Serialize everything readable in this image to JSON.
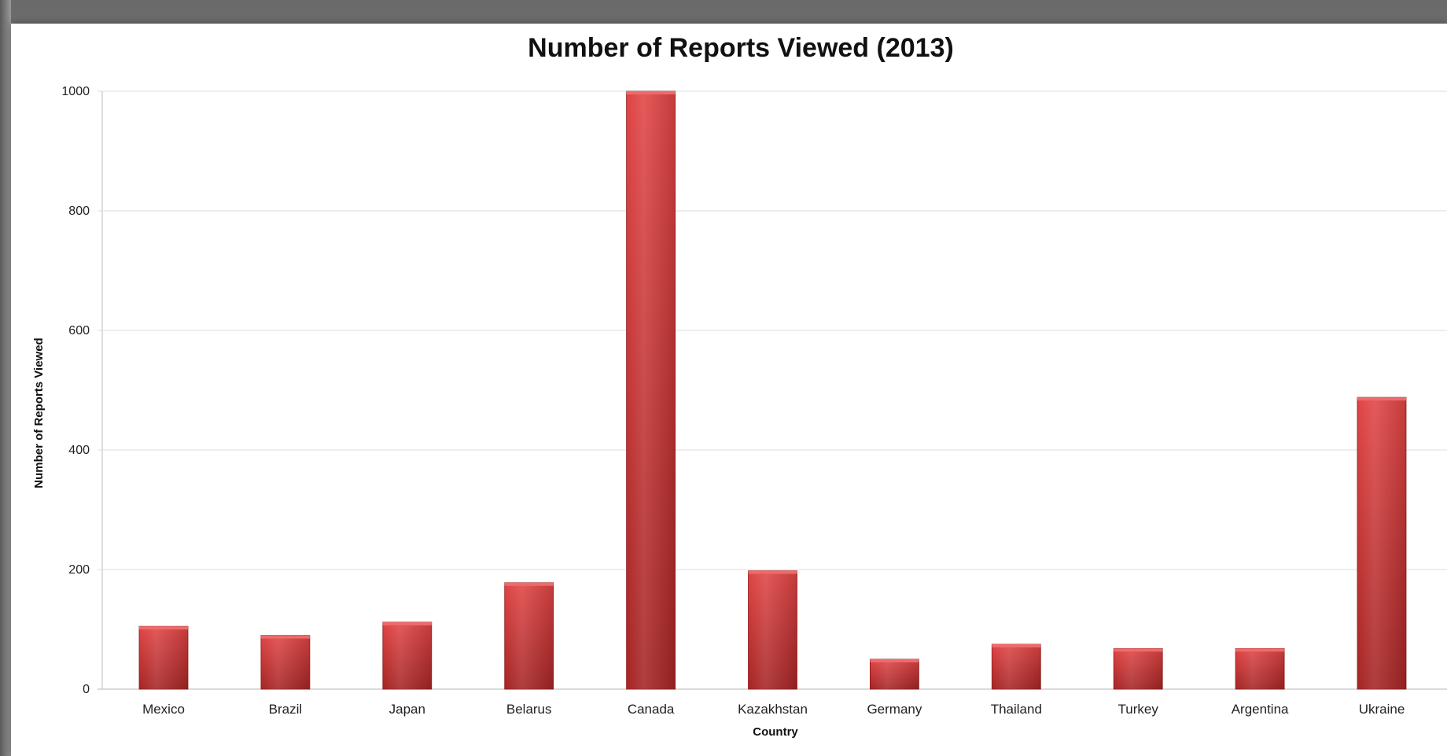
{
  "chart_data": {
    "type": "bar",
    "title": "Number of Reports Viewed (2013)",
    "xlabel": "Country",
    "ylabel": "Number of Reports Viewed",
    "categories": [
      "Mexico",
      "Brazil",
      "Japan",
      "Belarus",
      "Canada",
      "Kazakhstan",
      "Germany",
      "Thailand",
      "Turkey",
      "Argentina",
      "Ukraine"
    ],
    "values": [
      105,
      90,
      112,
      178,
      1000,
      198,
      50,
      75,
      68,
      68,
      488
    ],
    "ylim": [
      0,
      1000
    ],
    "yticks": [
      0,
      200,
      400,
      600,
      800,
      1000
    ],
    "grid": true,
    "legend": "none",
    "bar_color": "#d83a3a",
    "bar_color_dark": "#9e1f1f"
  }
}
